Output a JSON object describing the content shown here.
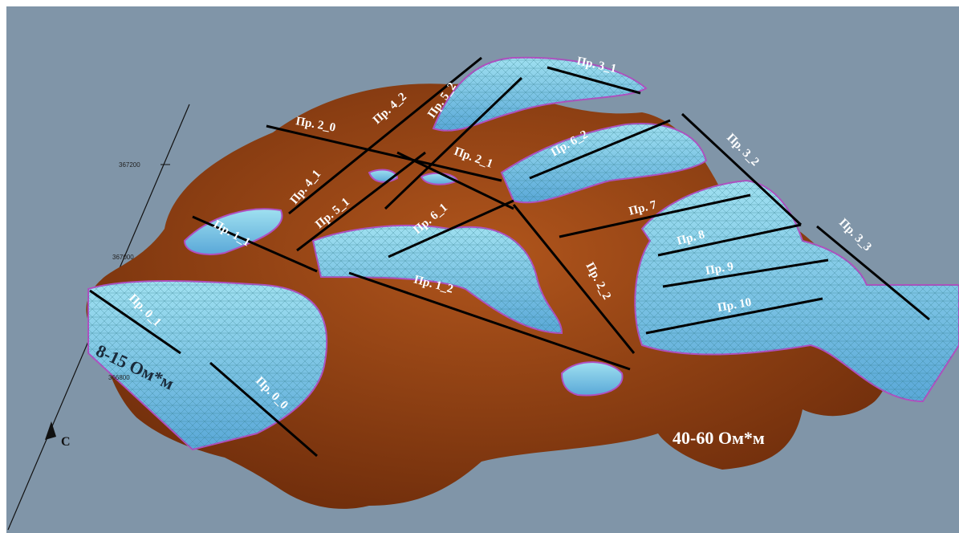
{
  "profiles": [
    "Пр. 3_1",
    "Пр. 4_2",
    "Пр. 5_2",
    "Пр. 2_0",
    "Пр. 6_2",
    "Пр. 3_2",
    "Пр. 2_1",
    "Пр. 4_1",
    "Пр. 5_1",
    "Пр. 6_1",
    "Пр. 7",
    "Пр. 1_1",
    "Пр. 8",
    "Пр. 3_3",
    "Пр. 9",
    "Пр. 1_2",
    "Пр. 2_2",
    "Пр. 10",
    "Пр. 0_1",
    "Пр. 0_0"
  ],
  "axis": {
    "ticks": [
      "367200",
      "367000",
      "366800"
    ],
    "north": "C"
  },
  "zones": [
    "8-15 Ом*м",
    "40-60 Ом*м"
  ]
}
